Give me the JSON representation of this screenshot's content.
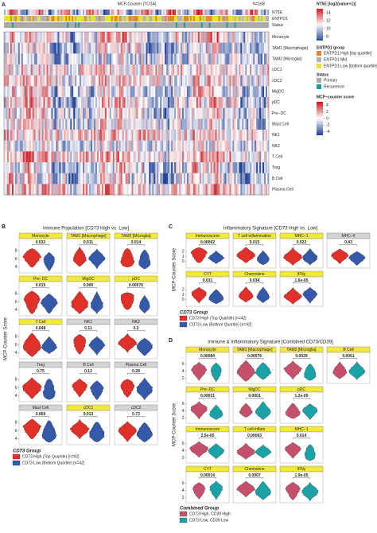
{
  "panel_a": {
    "label": "A",
    "title": "MCP-Counter [TCGA]",
    "n": "N=168",
    "annotation_rows": [
      "NT5E",
      "ENTPD1",
      "Status"
    ],
    "score_rows": [
      "Monocyte",
      "TAM1 [Macrophage]",
      "TAM2 [Microglia]",
      "cDC1",
      "cDC2",
      "MigDC",
      "pDC",
      "Pre−DC",
      "Mast Cell",
      "NK1",
      "NK2",
      "T Cell",
      "Treg",
      "B Cell",
      "Plasma Cell"
    ],
    "legend": {
      "nt5e": {
        "title": "NT5E [log2(value+1)]",
        "lim": [
          7,
          15
        ],
        "ticks": [
          14,
          12,
          10,
          8
        ]
      },
      "entpd1": {
        "title": "ENTPD1 group",
        "items": [
          {
            "label": "ENTPD1 High [top quartile]",
            "color": "#e8842e"
          },
          {
            "label": "ENTPD1 Mid",
            "color": "#b3b3b3"
          },
          {
            "label": "ENTPD1 Low [bottom quartile]",
            "color": "#e6e03a"
          }
        ]
      },
      "status": {
        "title": "Status",
        "items": [
          {
            "label": "Primary",
            "color": "#a9a9a9"
          },
          {
            "label": "Recurrence",
            "color": "#1b9e95"
          }
        ]
      },
      "score": {
        "title": "MCP−counter score",
        "lim": [
          -5,
          5
        ],
        "ticks": [
          4,
          2,
          0,
          -2,
          -4
        ]
      }
    }
  },
  "panel_b": {
    "label": "B",
    "title": "Immune Population [CD73 High vs. Low]",
    "y_label": "MCP-Counter Score",
    "ylim": [
      3,
      9
    ],
    "yticks": [
      4,
      6,
      8
    ],
    "colors": [
      "#e0302a",
      "#3558a8"
    ],
    "facets": [
      {
        "name": "Monocyte",
        "p": "0.032",
        "highlight": true
      },
      {
        "name": "TAM1 [Macrophage]",
        "p": "0.011",
        "highlight": true
      },
      {
        "name": "TAM2 [Microglia]",
        "p": "0.014",
        "highlight": true
      },
      {
        "name": "Pre−DC",
        "p": "0.015",
        "highlight": true
      },
      {
        "name": "MigDC",
        "p": "0.006",
        "highlight": true
      },
      {
        "name": "pDC",
        "p": "0.00076",
        "highlight": true
      },
      {
        "name": "T Cell",
        "p": "0.048",
        "highlight": true
      },
      {
        "name": "NK1",
        "p": "0.11",
        "highlight": false
      },
      {
        "name": "NK2",
        "p": "0.2",
        "highlight": false
      },
      {
        "name": "Treg",
        "p": "0.75",
        "highlight": false
      },
      {
        "name": "B Cell",
        "p": "0.12",
        "highlight": false
      },
      {
        "name": "Plasma Cell",
        "p": "0.28",
        "highlight": false
      },
      {
        "name": "Mast Cell",
        "p": "0.069",
        "highlight": false
      },
      {
        "name": "cDC1",
        "p": "0.013",
        "highlight": true
      },
      {
        "name": "cDC2",
        "p": "0.73",
        "highlight": false
      }
    ],
    "legend": {
      "title": "CD73 Group",
      "items": [
        "CD73 High (Top Quartile) [n=42]",
        "CD73 Low (Bottom Quartile) [n=42]"
      ]
    }
  },
  "panel_c": {
    "label": "C",
    "title": "Inflammatory Signature [CD73 High vs. Low]",
    "y_label": "MCP-Counter Score",
    "ylim": [
      -1,
      3
    ],
    "yticks": [
      0,
      1,
      2
    ],
    "colors": [
      "#e0302a",
      "#3558a8"
    ],
    "facets": [
      {
        "name": "Immunoscore",
        "p": "0.00062",
        "highlight": true
      },
      {
        "name": "T cell inflammation",
        "p": "0.015",
        "highlight": true
      },
      {
        "name": "MHC−1",
        "p": "0.022",
        "highlight": true
      },
      {
        "name": "MHC−II",
        "p": "0.43",
        "highlight": false
      },
      {
        "name": "CYT",
        "p": "0.031",
        "highlight": true
      },
      {
        "name": "Chemokine",
        "p": "0.034",
        "highlight": true
      },
      {
        "name": "IFNy",
        "p": "1.6e-05",
        "highlight": true
      }
    ],
    "legend": {
      "title": "CD73 Group",
      "items": [
        "CD73 High (Top Quartile) [n=42]",
        "CD73 Low (Bottom Quartile) [n=42]"
      ]
    }
  },
  "panel_d": {
    "label": "D",
    "title": "Immune & Inflammatory Signature [Combined CD73/CD39]",
    "y_label": "MCP-Counter Score",
    "ylim": [
      1,
      7
    ],
    "yticks": [
      2,
      4,
      6
    ],
    "colors": [
      "#c4506b",
      "#1aa2a6"
    ],
    "facets": [
      {
        "name": "Monocyte",
        "p": "0.00084",
        "highlight": true
      },
      {
        "name": "TAM1 [Macrophage]",
        "p": "0.00076",
        "highlight": true
      },
      {
        "name": "TAM2 [Microglia]",
        "p": "0.0029",
        "highlight": true
      },
      {
        "name": "B Cell",
        "p": "0.0061",
        "highlight": true
      },
      {
        "name": "Pre−DC",
        "p": "0.00021",
        "highlight": true
      },
      {
        "name": "MigDC",
        "p": "0.0001",
        "highlight": true
      },
      {
        "name": "pDC",
        "p": "1.2e-05",
        "highlight": true
      },
      {
        "name": "Immunoscore",
        "p": "2.5e-05",
        "highlight": true
      },
      {
        "name": "T cell inflam",
        "p": "0.00063",
        "highlight": true
      },
      {
        "name": "MHC−1",
        "p": "0.014",
        "highlight": true
      },
      {
        "name": "CYT",
        "p": "0.00014",
        "highlight": true
      },
      {
        "name": "Chemokine",
        "p": "0.0007",
        "highlight": true
      },
      {
        "name": "IFNy",
        "p": "1.9e-05",
        "highlight": true
      }
    ],
    "layout": [
      4,
      3,
      3,
      3
    ],
    "legend": {
      "title": "Combined Group",
      "items": [
        "CD73 High, CD39 High",
        "CD73 Low, CD39 Low"
      ]
    }
  }
}
